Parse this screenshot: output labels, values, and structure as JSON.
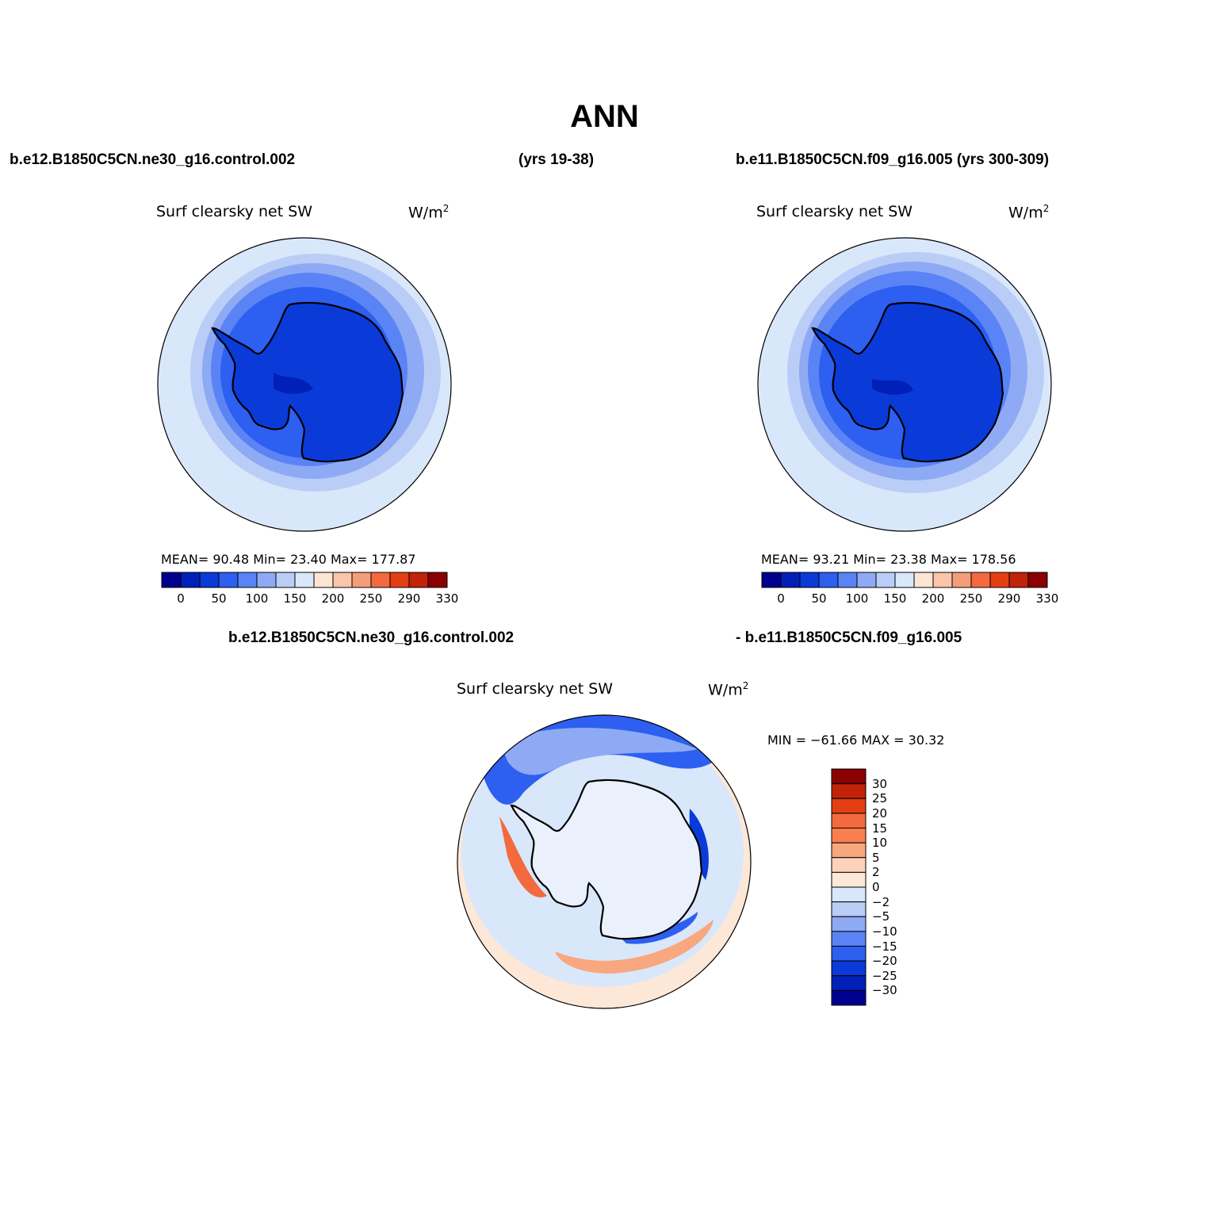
{
  "title": "ANN",
  "panels": [
    {
      "case_label": "b.e12.B1850C5CN.ne30_g16.control.002",
      "years": "(yrs 19-38)",
      "plot_title": "Surf clearsky net SW",
      "units": "W/m",
      "units_sup": "2",
      "stats": "MEAN=   90.48   Min=   23.40   Max=  177.87",
      "colorbar": {
        "colors": [
          "#00008f",
          "#0020b8",
          "#0a3ad8",
          "#2d5ff0",
          "#5a84f5",
          "#8eaaf5",
          "#b9cdf7",
          "#d9e7fb",
          "#fde5d5",
          "#fbc5ab",
          "#f49d7a",
          "#f26a3e",
          "#e33e12",
          "#c0230a",
          "#8b0000"
        ],
        "labels": [
          "0",
          "50",
          "100",
          "150",
          "200",
          "250",
          "290",
          "330"
        ]
      }
    },
    {
      "case_label": "b.e11.B1850C5CN.f09_g16.005 (yrs 300-309)",
      "plot_title": "Surf clearsky net SW",
      "units": "W/m",
      "units_sup": "2",
      "stats": "MEAN=   93.21   Min=   23.38   Max=  178.56",
      "colorbar": {
        "colors": [
          "#00008f",
          "#0020b8",
          "#0a3ad8",
          "#2d5ff0",
          "#5a84f5",
          "#8eaaf5",
          "#b9cdf7",
          "#d9e7fb",
          "#fde5d5",
          "#fbc5ab",
          "#f49d7a",
          "#f26a3e",
          "#e33e12",
          "#c0230a",
          "#8b0000"
        ],
        "labels": [
          "0",
          "50",
          "100",
          "150",
          "200",
          "250",
          "290",
          "330"
        ]
      }
    }
  ],
  "difference": {
    "case_a": "b.e12.B1850C5CN.ne30_g16.control.002",
    "case_b": "- b.e11.B1850C5CN.f09_g16.005",
    "plot_title": "Surf clearsky net SW",
    "units": "W/m",
    "units_sup": "2",
    "stats": "MIN = −61.66  MAX =   30.32",
    "colorbar": {
      "colors": [
        "#8b0000",
        "#c0230a",
        "#e33e12",
        "#f26a3e",
        "#fb7f4e",
        "#f9a77e",
        "#fcd2b8",
        "#fde8d8",
        "#d9e7fb",
        "#b9cdf7",
        "#8eaaf5",
        "#5a84f5",
        "#2d5ff0",
        "#0a3ad8",
        "#0020b8",
        "#00008f"
      ],
      "labels": [
        "30",
        "25",
        "20",
        "15",
        "10",
        "5",
        "2",
        "0",
        "−2",
        "−5",
        "−10",
        "−15",
        "−20",
        "−25",
        "−30"
      ]
    }
  }
}
